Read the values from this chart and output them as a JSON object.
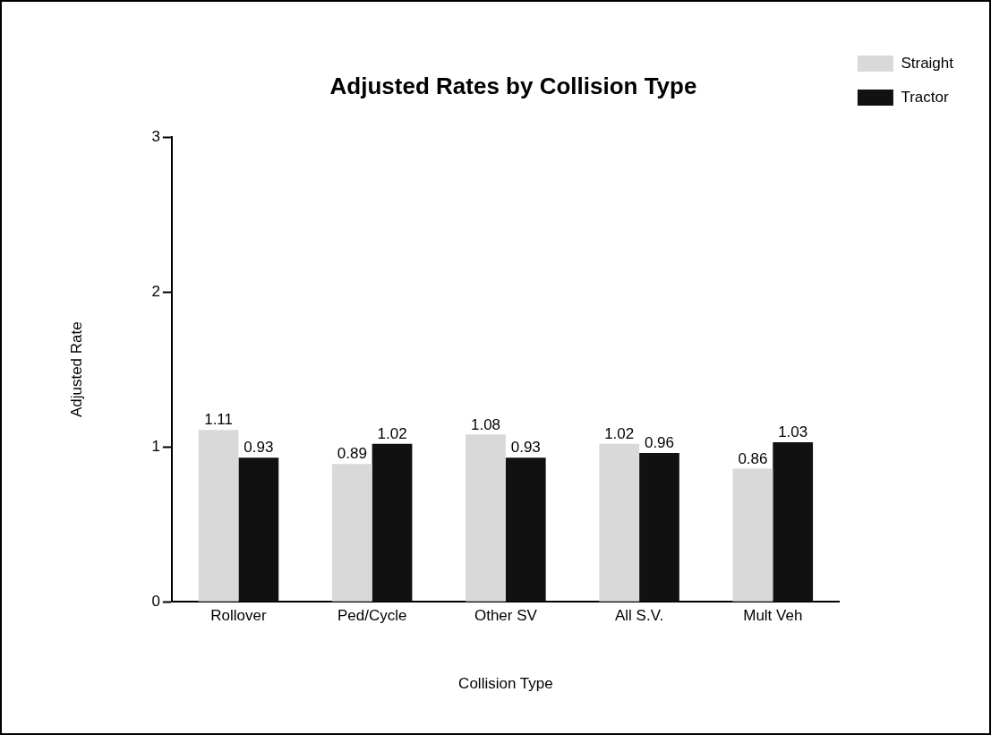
{
  "chart_data": {
    "type": "bar",
    "title": "Adjusted Rates by Collision Type",
    "xlabel": "Collision Type",
    "ylabel": "Adjusted Rate",
    "categories": [
      "Rollover",
      "Ped/Cycle",
      "Other SV",
      "All S.V.",
      "Mult Veh"
    ],
    "series": [
      {
        "name": "Straight",
        "color": "#d9d9d9",
        "values": [
          1.11,
          0.89,
          1.08,
          1.02,
          0.86
        ]
      },
      {
        "name": "Tractor",
        "color": "#111111",
        "values": [
          0.93,
          1.02,
          0.93,
          0.96,
          1.03
        ]
      }
    ],
    "ylim": [
      0,
      3
    ],
    "yticks": [
      0,
      1,
      2,
      3
    ],
    "grid": false,
    "legend": "top right",
    "data_labels": true
  }
}
